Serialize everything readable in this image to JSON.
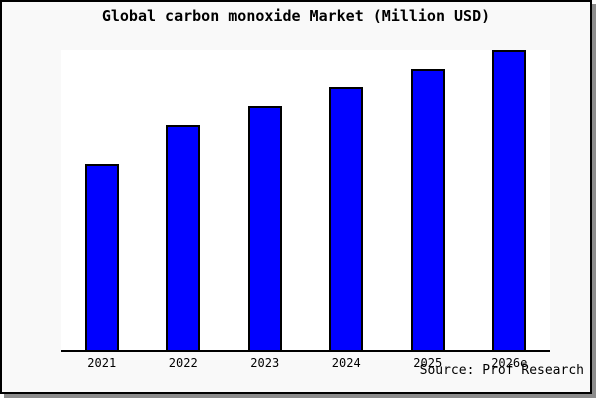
{
  "title": "Global carbon monoxide Market (Million USD)",
  "source_credit": "Source: Prof Research",
  "colors": {
    "bar_fill": "#0000ff",
    "bar_outline": "#000000",
    "figure_background": "#f9f9f9",
    "plot_background": "#ffffff",
    "frame_border": "#000000",
    "frame_shadow": "#8c8c8c",
    "text": "#000000"
  },
  "chart_data": {
    "type": "bar",
    "title": "Global carbon monoxide Market (Million USD)",
    "categories": [
      "2021",
      "2022",
      "2023",
      "2024",
      "2025",
      "2026e"
    ],
    "values": [
      186,
      225,
      244,
      263,
      281,
      300
    ],
    "xlabel": "",
    "ylabel": "",
    "ylim": [
      0,
      300
    ],
    "y_axis_labeled": false,
    "grid": false,
    "legend": false,
    "bar_color": "#0000ff"
  }
}
